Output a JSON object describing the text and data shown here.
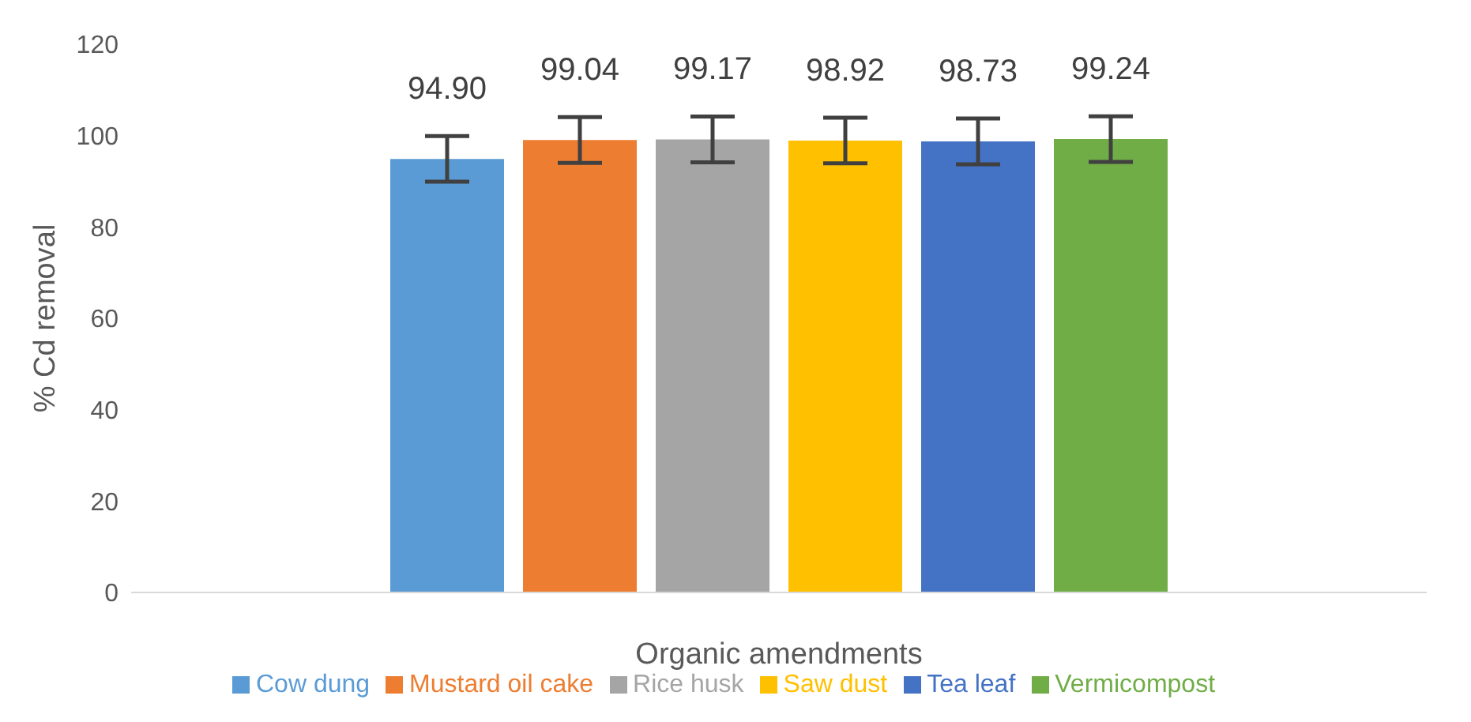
{
  "chart_data": {
    "type": "bar",
    "xlabel": "Organic amendments",
    "ylabel": "% Cd removal",
    "categories": [
      null
    ],
    "series": [
      {
        "name": "Cow dung",
        "color": "#5b9bd5",
        "values": [
          94.9
        ],
        "errors": [
          5
        ],
        "value_labels": [
          "94.90"
        ]
      },
      {
        "name": "Mustard oil cake",
        "color": "#ed7d31",
        "values": [
          99.04
        ],
        "errors": [
          5
        ],
        "value_labels": [
          "99.04"
        ]
      },
      {
        "name": "Rice husk",
        "color": "#a5a5a5",
        "values": [
          99.17
        ],
        "errors": [
          5
        ],
        "value_labels": [
          "99.17"
        ]
      },
      {
        "name": "Saw dust",
        "color": "#ffc000",
        "values": [
          98.92
        ],
        "errors": [
          5
        ],
        "value_labels": [
          "98.92"
        ]
      },
      {
        "name": "Tea leaf",
        "color": "#4472c4",
        "values": [
          98.73
        ],
        "errors": [
          5
        ],
        "value_labels": [
          "98.73"
        ]
      },
      {
        "name": "Vermicompost",
        "color": "#70ad47",
        "values": [
          99.24
        ],
        "errors": [
          5
        ],
        "value_labels": [
          "99.24"
        ]
      }
    ],
    "ylim": [
      0,
      120
    ],
    "yticks": [
      0,
      20,
      40,
      60,
      80,
      100,
      120
    ],
    "grid": false,
    "legend": "bottom"
  }
}
